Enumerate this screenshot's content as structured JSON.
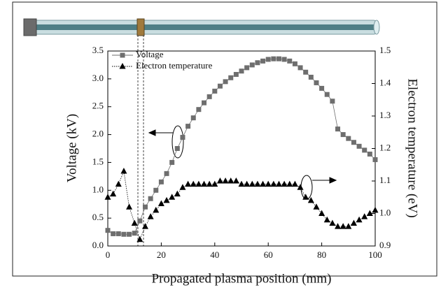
{
  "chart_data": {
    "type": "line",
    "xlabel": "Propagated plasma position (mm)",
    "ylabel": "Voltage (kV)",
    "y2label": "Electron temperature (eV)",
    "x": [
      0,
      2,
      4,
      6,
      8,
      10,
      12,
      14,
      16,
      18,
      20,
      22,
      24,
      26,
      28,
      30,
      32,
      34,
      36,
      38,
      40,
      42,
      44,
      46,
      48,
      50,
      52,
      54,
      56,
      58,
      60,
      62,
      64,
      66,
      68,
      70,
      72,
      74,
      76,
      78,
      80,
      82,
      84,
      86,
      88,
      90,
      92,
      94,
      96,
      98,
      100
    ],
    "series": [
      {
        "name": "Voltage",
        "color": "#6e6e6e",
        "marker": "square",
        "values": [
          0.28,
          0.22,
          0.22,
          0.21,
          0.21,
          0.23,
          0.45,
          0.7,
          0.85,
          1.0,
          1.15,
          1.3,
          1.5,
          1.75,
          1.95,
          2.15,
          2.3,
          2.45,
          2.57,
          2.68,
          2.78,
          2.87,
          2.95,
          3.02,
          3.08,
          3.14,
          3.2,
          3.25,
          3.29,
          3.32,
          3.35,
          3.36,
          3.36,
          3.35,
          3.32,
          3.27,
          3.2,
          3.12,
          3.03,
          2.93,
          2.83,
          2.72,
          2.6,
          2.1,
          2.0,
          1.93,
          1.86,
          1.79,
          1.72,
          1.65,
          1.55
        ]
      },
      {
        "name": "Electron temperature",
        "color": "#000000",
        "marker": "triangle",
        "axis": "y2",
        "values": [
          1.05,
          1.06,
          1.09,
          1.13,
          1.02,
          0.97,
          0.92,
          0.96,
          0.99,
          1.01,
          1.03,
          1.04,
          1.05,
          1.06,
          1.08,
          1.09,
          1.09,
          1.09,
          1.09,
          1.09,
          1.09,
          1.1,
          1.1,
          1.1,
          1.1,
          1.09,
          1.09,
          1.09,
          1.09,
          1.09,
          1.09,
          1.09,
          1.09,
          1.09,
          1.09,
          1.09,
          1.08,
          1.05,
          1.04,
          1.02,
          1.0,
          0.98,
          0.97,
          0.96,
          0.96,
          0.96,
          0.97,
          0.98,
          0.99,
          1.0,
          1.01
        ]
      }
    ],
    "xlim": [
      0,
      100
    ],
    "xticks": [
      0,
      20,
      40,
      60,
      80,
      100
    ],
    "ylim": [
      0,
      3.5
    ],
    "yticks": [
      {
        "value": 0,
        "label": "0.0"
      },
      0.5,
      {
        "value": 1,
        "label": "1.0"
      },
      1.5,
      {
        "value": 2,
        "label": "2.0"
      },
      2.5,
      {
        "value": 3,
        "label": "3.0"
      },
      3.5
    ],
    "y2lim": [
      0.9,
      1.5
    ],
    "y2ticks": [
      0.9,
      {
        "value": 1,
        "label": "1.0"
      },
      1.1,
      1.2,
      1.3,
      1.4,
      1.5
    ],
    "legend": "upper left"
  }
}
